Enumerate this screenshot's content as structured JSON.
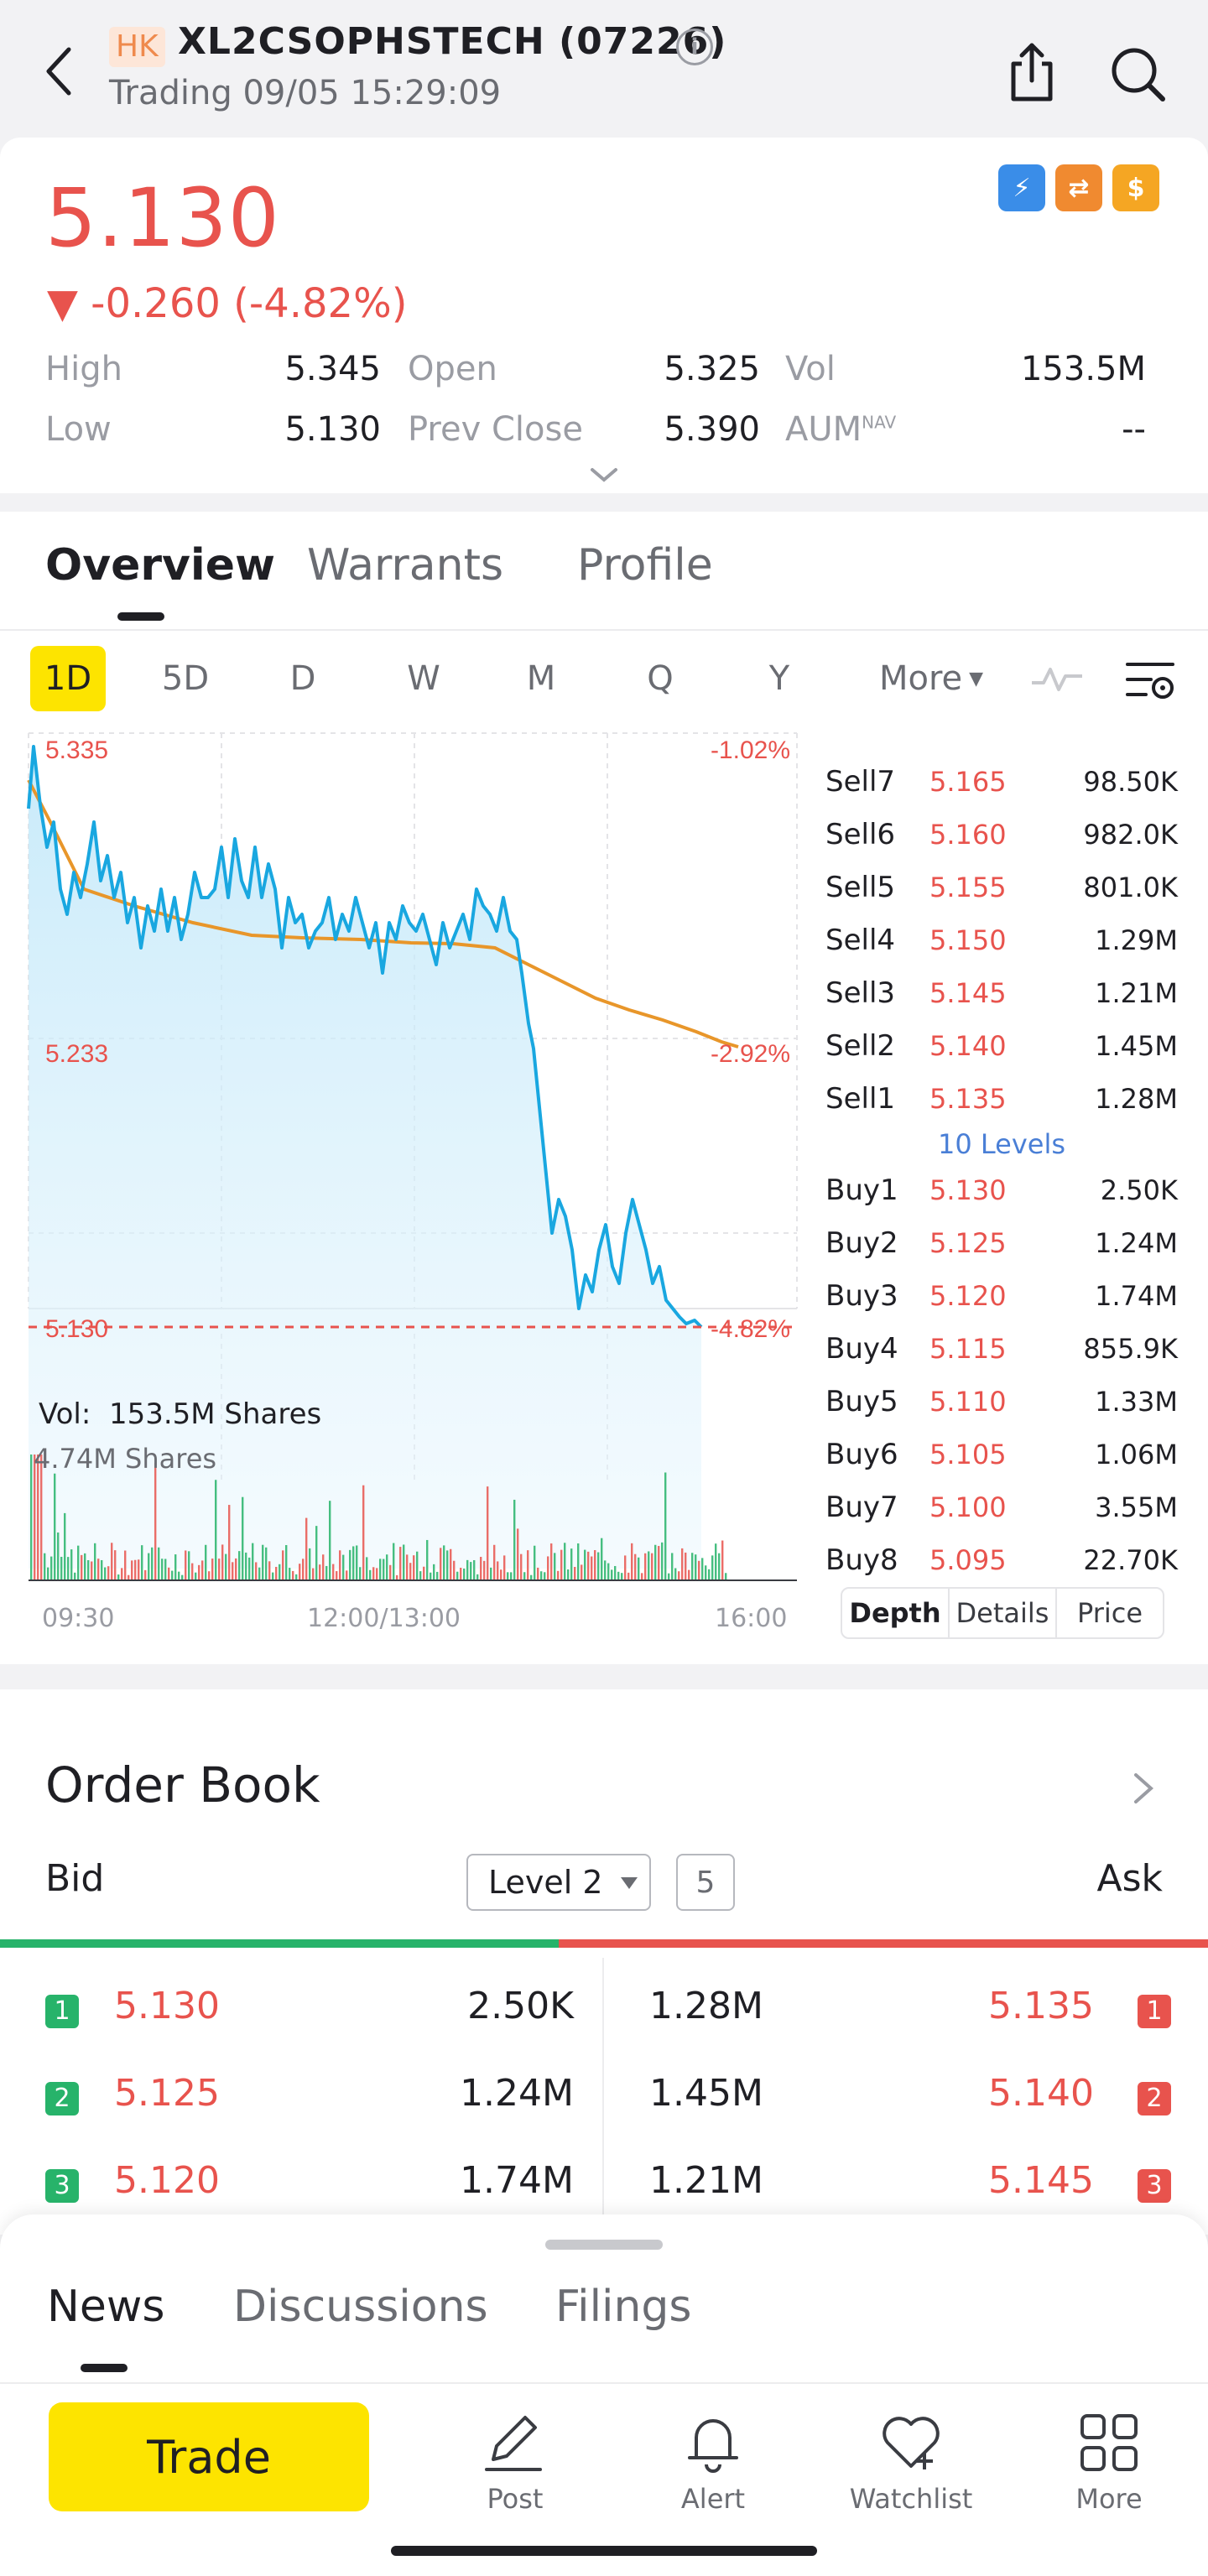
{
  "header": {
    "market_badge": "HK",
    "title": "XL2CSOPHSTECH (07226)",
    "status": "Trading 09/05 15:29:09"
  },
  "quote": {
    "price": "5.130",
    "change": "-0.260 (-4.82%)",
    "stats": [
      [
        {
          "label": "High",
          "value": "5.345"
        },
        {
          "label": "Open",
          "value": "5.325"
        },
        {
          "label": "Vol",
          "value": "153.5M"
        }
      ],
      [
        {
          "label": "Low",
          "value": "5.130"
        },
        {
          "label": "Prev Close",
          "value": "5.390"
        },
        {
          "label": "AUM",
          "value": "--"
        }
      ]
    ],
    "aum_sup": "NAV"
  },
  "tabs": [
    "Overview",
    "Warrants",
    "Profile"
  ],
  "periods": [
    "1D",
    "5D",
    "D",
    "W",
    "M",
    "Q",
    "Y",
    "More"
  ],
  "chart": {
    "price_labels": {
      "top": "5.335",
      "mid": "5.233",
      "bottom": "5.130"
    },
    "pct_labels": {
      "top": "-1.02%",
      "mid": "-2.92%",
      "bottom": "-4.82%"
    },
    "vol_label": "Vol:",
    "vol_value": "153.5M Shares",
    "vol_max": "4.74M Shares",
    "x_ticks": [
      "09:30",
      "12:00/13:00",
      "16:00"
    ]
  },
  "chart_data": {
    "type": "line",
    "x": [
      "09:30",
      "12:00/13:00",
      "16:00"
    ],
    "series": [],
    "ylim": [
      5.13,
      5.335
    ],
    "y_ticks": [
      "5.335",
      "5.233",
      "5.130"
    ],
    "y2_ticks": [
      "-1.02%",
      "-2.92%",
      "-4.82%"
    ]
  },
  "depth": {
    "sells": [
      {
        "label": "Sell7",
        "price": "5.165",
        "vol": "98.50K"
      },
      {
        "label": "Sell6",
        "price": "5.160",
        "vol": "982.0K"
      },
      {
        "label": "Sell5",
        "price": "5.155",
        "vol": "801.0K"
      },
      {
        "label": "Sell4",
        "price": "5.150",
        "vol": "1.29M"
      },
      {
        "label": "Sell3",
        "price": "5.145",
        "vol": "1.21M"
      },
      {
        "label": "Sell2",
        "price": "5.140",
        "vol": "1.45M"
      },
      {
        "label": "Sell1",
        "price": "5.135",
        "vol": "1.28M"
      }
    ],
    "levels_link": "10 Levels",
    "buys": [
      {
        "label": "Buy1",
        "price": "5.130",
        "vol": "2.50K"
      },
      {
        "label": "Buy2",
        "price": "5.125",
        "vol": "1.24M"
      },
      {
        "label": "Buy3",
        "price": "5.120",
        "vol": "1.74M"
      },
      {
        "label": "Buy4",
        "price": "5.115",
        "vol": "855.9K"
      },
      {
        "label": "Buy5",
        "price": "5.110",
        "vol": "1.33M"
      },
      {
        "label": "Buy6",
        "price": "5.105",
        "vol": "1.06M"
      },
      {
        "label": "Buy7",
        "price": "5.100",
        "vol": "3.55M"
      },
      {
        "label": "Buy8",
        "price": "5.095",
        "vol": "22.70K"
      }
    ],
    "tabs": [
      "Depth",
      "Details",
      "Price"
    ]
  },
  "order_book": {
    "title": "Order Book",
    "bid_label": "Bid",
    "ask_label": "Ask",
    "level": "Level 2",
    "count": "5",
    "rows": [
      {
        "n": "1",
        "bid_price": "5.130",
        "bid_vol": "2.50K",
        "ask_vol": "1.28M",
        "ask_price": "5.135"
      },
      {
        "n": "2",
        "bid_price": "5.125",
        "bid_vol": "1.24M",
        "ask_vol": "1.45M",
        "ask_price": "5.140"
      },
      {
        "n": "3",
        "bid_price": "5.120",
        "bid_vol": "1.74M",
        "ask_vol": "1.21M",
        "ask_price": "5.145"
      }
    ]
  },
  "sheet": {
    "tabs": [
      "News",
      "Discussions",
      "Filings"
    ],
    "trade": "Trade",
    "nav": [
      "Post",
      "Alert",
      "Watchlist",
      "More"
    ]
  },
  "colors": {
    "up": "#e8534d",
    "down": "#27b36a",
    "accent": "#fde400",
    "line": "#19a7e0",
    "avg": "#e8962a"
  },
  "icons": {
    "back": "chevron-left-icon",
    "info": "info-icon",
    "share": "share-icon",
    "search": "search-icon"
  }
}
